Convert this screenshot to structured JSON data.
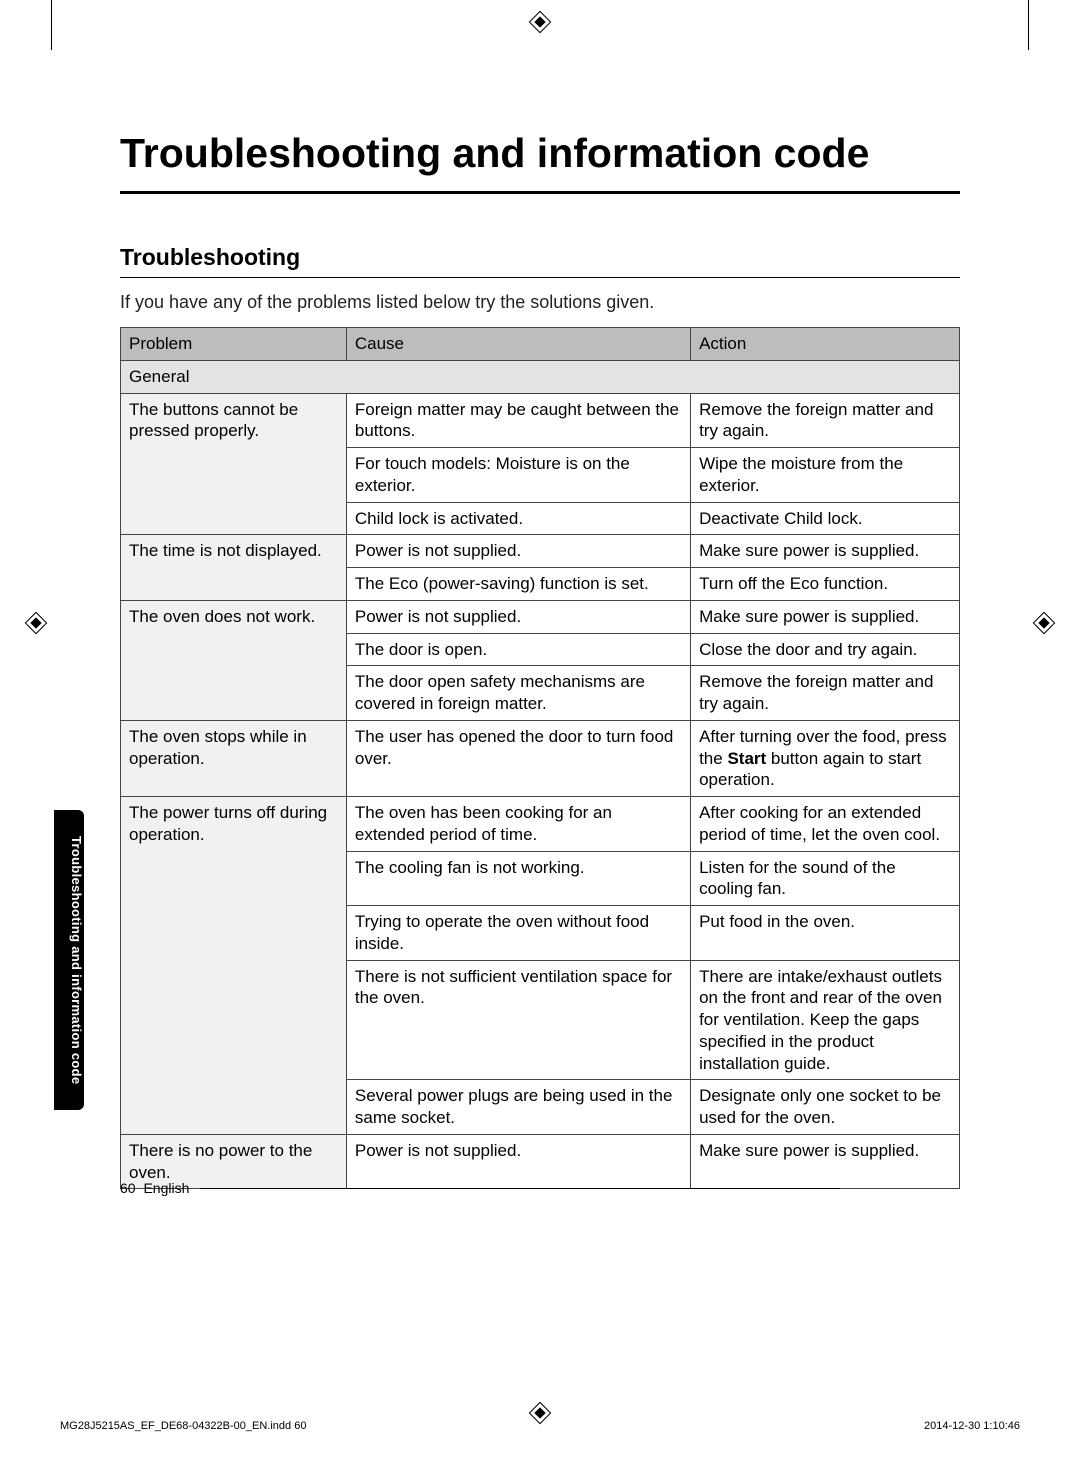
{
  "title": "Troubleshooting and information code",
  "section_heading": "Troubleshooting",
  "intro": "If you have any of the problems listed below try the solutions given.",
  "side_tab": "Troubleshooting and information code",
  "footer_page": "60",
  "footer_lang": "English",
  "print_file": "MG28J5215AS_EF_DE68-04322B-00_EN.indd   60",
  "print_date": "2014-12-30   1:10:46",
  "table": {
    "headers": {
      "problem": "Problem",
      "cause": "Cause",
      "action": "Action"
    },
    "section_label": "General",
    "rows": [
      {
        "problem": "The buttons cannot be pressed properly.",
        "problem_rowspan": 3,
        "cause": "Foreign matter may be caught between the buttons.",
        "action": "Remove the foreign matter and try again."
      },
      {
        "cause": "For touch models: Moisture is on the exterior.",
        "action": "Wipe the moisture from the exterior."
      },
      {
        "cause": "Child lock is activated.",
        "action": "Deactivate Child lock."
      },
      {
        "problem": "The time is not displayed.",
        "problem_rowspan": 2,
        "cause": "Power is not supplied.",
        "action": "Make sure power is supplied."
      },
      {
        "cause": "The Eco (power-saving) function is set.",
        "action": "Turn off the Eco function."
      },
      {
        "problem": "The oven does not work.",
        "problem_rowspan": 3,
        "cause": "Power is not supplied.",
        "action": "Make sure power is supplied."
      },
      {
        "cause": "The door is open.",
        "action": "Close the door and try again."
      },
      {
        "cause": "The door open safety mechanisms are covered in foreign matter.",
        "action": "Remove the foreign matter and try again."
      },
      {
        "problem": "The oven stops while in operation.",
        "problem_rowspan": 1,
        "cause": "The user has opened the door to turn food over.",
        "action_pre": "After turning over the food, press the ",
        "action_bold": "Start",
        "action_post": " button again to start operation."
      },
      {
        "problem": "The power turns off during operation.",
        "problem_rowspan": 5,
        "cause": "The oven has been cooking for an extended period of time.",
        "action": "After cooking for an extended period of time, let the oven cool."
      },
      {
        "cause": "The cooling fan is not working.",
        "action": "Listen for the sound of the cooling fan."
      },
      {
        "cause": "Trying to operate the oven without food inside.",
        "action": "Put food in the oven."
      },
      {
        "cause": "There is not sufficient ventilation space for the oven.",
        "action": "There are intake/exhaust outlets on the front and rear of the oven for ventilation. Keep the gaps specified in the product installation guide."
      },
      {
        "cause": "Several power plugs are being used in the same socket.",
        "action": "Designate only one socket to be used for the oven."
      },
      {
        "problem": "There is no power to the oven.",
        "problem_rowspan": 1,
        "cause": "Power is not supplied.",
        "action": "Make sure power is supplied."
      }
    ]
  }
}
